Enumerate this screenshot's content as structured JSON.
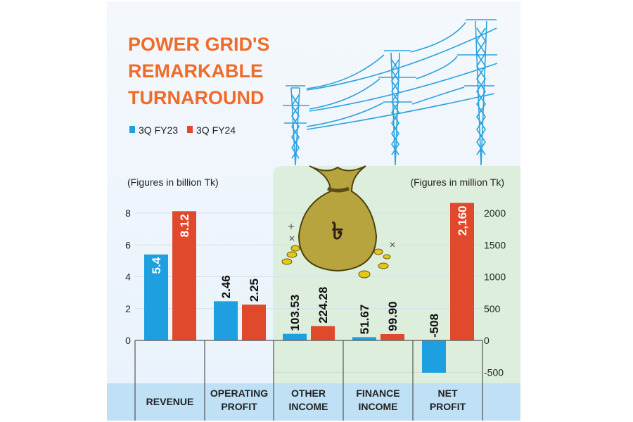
{
  "title_lines": [
    "POWER GRID'S",
    "REMARKABLE",
    "TURNAROUND"
  ],
  "left_unit_note": "(Figures in billion Tk)",
  "right_unit_note": "(Figures in million Tk)",
  "colors": {
    "fy23": "#1ea0e0",
    "fy24": "#e0492c",
    "title": "#ef6b2a",
    "green_panel": "#deeedd",
    "bottom_band": "#bfe0f5"
  },
  "chart_data": {
    "type": "bar",
    "title": "POWER GRID'S REMARKABLE TURNAROUND",
    "legend": {
      "placement": "top-left",
      "entries": [
        "3Q FY23",
        "3Q FY24"
      ]
    },
    "categories": [
      {
        "lines": [
          "REVENUE"
        ],
        "axis": "left"
      },
      {
        "lines": [
          "OPERATING",
          "PROFIT"
        ],
        "axis": "left"
      },
      {
        "lines": [
          "OTHER",
          "INCOME"
        ],
        "axis": "right"
      },
      {
        "lines": [
          "FINANCE",
          "INCOME"
        ],
        "axis": "right"
      },
      {
        "lines": [
          "NET",
          "PROFIT"
        ],
        "axis": "right"
      }
    ],
    "series": [
      {
        "name": "3Q FY23",
        "values": [
          5.4,
          2.46,
          103.53,
          51.67,
          -508
        ],
        "labels": [
          "5.4",
          "2.46",
          "103.53",
          "51.67",
          "-508"
        ]
      },
      {
        "name": "3Q FY24",
        "values": [
          8.12,
          2.25,
          224.28,
          99.9,
          2160
        ],
        "labels": [
          "8.12",
          "2.25",
          "224.28",
          "99.90",
          "2,160"
        ]
      }
    ],
    "left_axis": {
      "label": "Figures in billion Tk",
      "ylim": [
        0,
        8
      ],
      "ticks": [
        "0",
        "2",
        "4",
        "6",
        "8"
      ]
    },
    "right_axis": {
      "label": "Figures in million Tk",
      "ylim": [
        -500,
        2000
      ],
      "ticks": [
        "-500",
        "0",
        "500",
        "1000",
        "1500",
        "2000"
      ]
    },
    "grid": true
  }
}
